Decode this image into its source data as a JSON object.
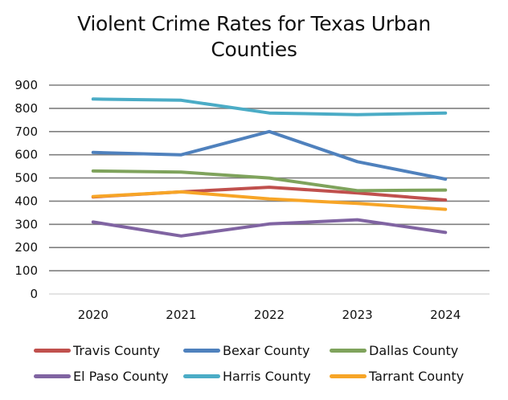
{
  "chart_data": {
    "type": "line",
    "title": "Violent Crime Rates for Texas Urban Counties",
    "title_lines": [
      "Violent Crime Rates for Texas Urban",
      "Counties"
    ],
    "xlabel": "",
    "ylabel": "",
    "categories": [
      "2020",
      "2021",
      "2022",
      "2023",
      "2024"
    ],
    "ylim": [
      0,
      900
    ],
    "yticks": [
      0,
      100,
      200,
      300,
      400,
      500,
      600,
      700,
      800,
      900
    ],
    "grid": true,
    "legend_position": "bottom",
    "series": [
      {
        "name": "Travis County",
        "color": "#C0504D",
        "values": [
          418,
          440,
          460,
          435,
          405
        ]
      },
      {
        "name": "Bexar County",
        "color": "#4F81BD",
        "values": [
          610,
          600,
          700,
          570,
          495
        ]
      },
      {
        "name": "Dallas County",
        "color": "#7FA35C",
        "values": [
          530,
          525,
          500,
          445,
          448
        ]
      },
      {
        "name": "El Paso County",
        "color": "#8064A2",
        "values": [
          310,
          250,
          302,
          320,
          265
        ]
      },
      {
        "name": "Harris County",
        "color": "#4BACC6",
        "values": [
          840,
          835,
          780,
          773,
          780
        ]
      },
      {
        "name": "Tarrant County",
        "color": "#F7A527",
        "values": [
          420,
          440,
          410,
          390,
          365
        ]
      }
    ],
    "draw_order": [
      "Travis County",
      "Tarrant County",
      "Bexar County",
      "Dallas County",
      "El Paso County",
      "Harris County"
    ]
  }
}
